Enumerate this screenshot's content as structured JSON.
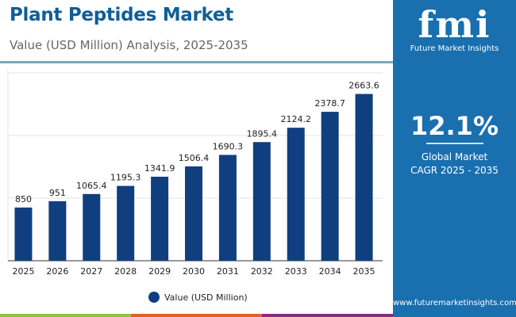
{
  "header": {
    "title": "Plant Peptides Market",
    "subtitle": "Value (USD Million) Analysis, 2025-2035"
  },
  "panel": {
    "logo_text": "fmi",
    "logo_name": "Future Market Insights",
    "cagr_value": "12.1%",
    "cagr_label_1": "Global Market",
    "cagr_label_2": "CAGR 2025 - 2035",
    "url": "www.futuremarketinsights.com"
  },
  "colors": {
    "bar": "#0f3f7f",
    "panel": "#1a6fae",
    "title": "#0f5e98",
    "stripes": [
      "#8bc34a",
      "#e2612b",
      "#8a2a8a",
      "#1a6fae"
    ]
  },
  "chart_data": {
    "type": "bar",
    "categories": [
      "2025",
      "2026",
      "2027",
      "2028",
      "2029",
      "2030",
      "2031",
      "2032",
      "2033",
      "2034",
      "2035"
    ],
    "series": [
      {
        "name": "Value (USD Million)",
        "values": [
          850,
          951,
          1065.4,
          1195.3,
          1341.9,
          1506.4,
          1690.3,
          1895.4,
          2124.2,
          2378.7,
          2663.6
        ]
      }
    ],
    "data_labels": [
      "850",
      "951",
      "1065.4",
      "1195.3",
      "1341.9",
      "1506.4",
      "1690.3",
      "1895.4",
      "2124.2",
      "2378.7",
      "2663.6"
    ],
    "ylim": [
      0,
      3000
    ],
    "grid": true,
    "y_tick_labels_visible": false,
    "legend": "bottom-center"
  }
}
